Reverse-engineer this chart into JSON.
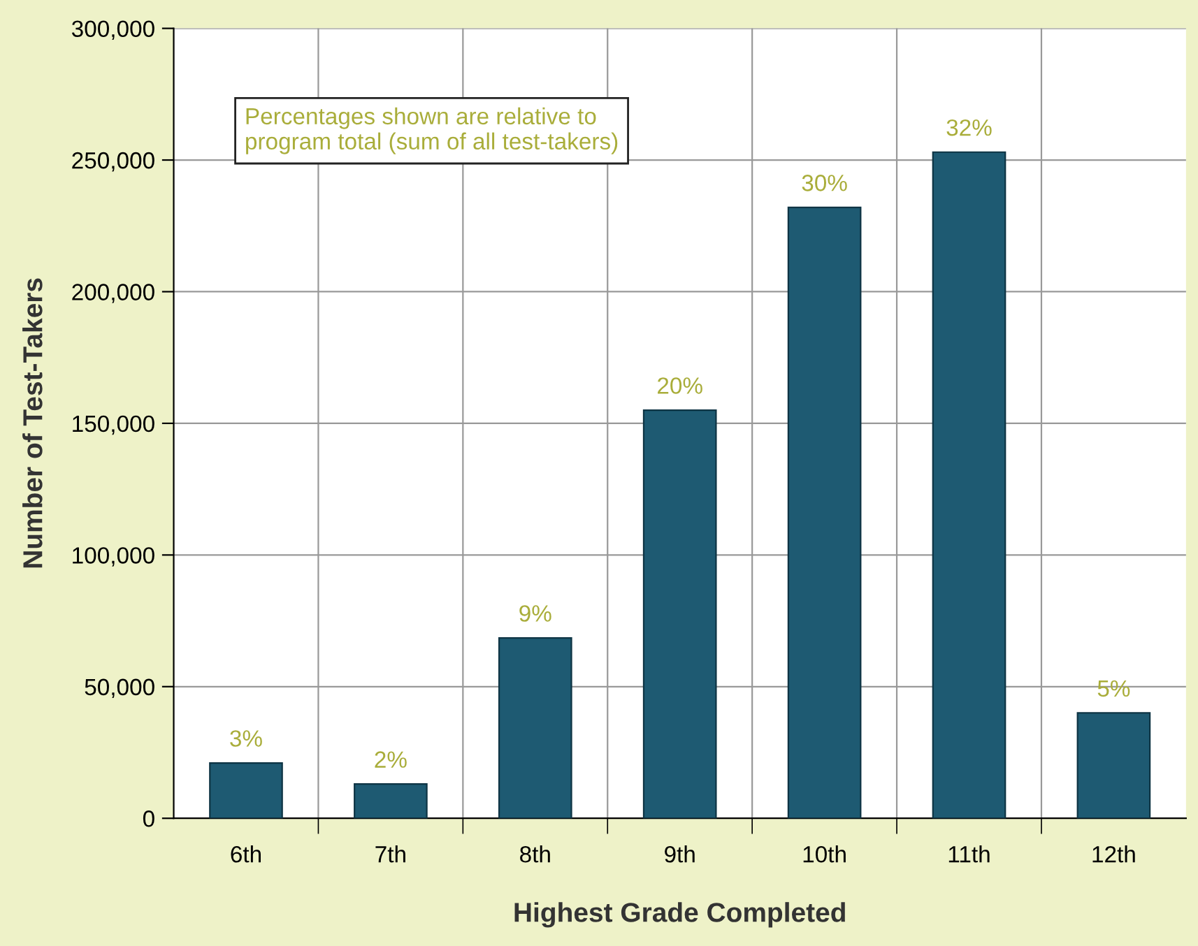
{
  "chart_data": {
    "type": "bar",
    "xlabel": "Highest Grade Completed",
    "ylabel": "Number of Test-Takers",
    "categories": [
      "6th",
      "7th",
      "8th",
      "9th",
      "10th",
      "11th",
      "12th"
    ],
    "values": [
      21000,
      13000,
      68500,
      155000,
      232000,
      253000,
      40000
    ],
    "color": "#1e5a72",
    "ylim": [
      0,
      300000
    ],
    "yticks": [
      {
        "value": 0,
        "label": "0"
      },
      {
        "value": 50000,
        "label": "50,000"
      },
      {
        "value": 100000,
        "label": "100,000"
      },
      {
        "value": 150000,
        "label": "150,000"
      },
      {
        "value": 200000,
        "label": "200,000"
      },
      {
        "value": 250000,
        "label": "250,000"
      },
      {
        "value": 300000,
        "label": "300,000"
      }
    ],
    "grid": true,
    "annotations": [
      "Percentages shown are relative to\nprogram total (sum of all test-takers)",
      {
        "text": "3%",
        "x": "6th",
        "y": 21000
      },
      {
        "text": "2%",
        "x": "7th",
        "y": 13000
      },
      {
        "text": "9%",
        "x": "8th",
        "y": 68500
      },
      {
        "text": "20%",
        "x": "9th",
        "y": 155000
      },
      {
        "text": "30%",
        "x": "10th",
        "y": 232000
      },
      {
        "text": "32%",
        "x": "11th",
        "y": 253000
      },
      {
        "text": "5%",
        "x": "12th",
        "y": 40000
      }
    ]
  }
}
